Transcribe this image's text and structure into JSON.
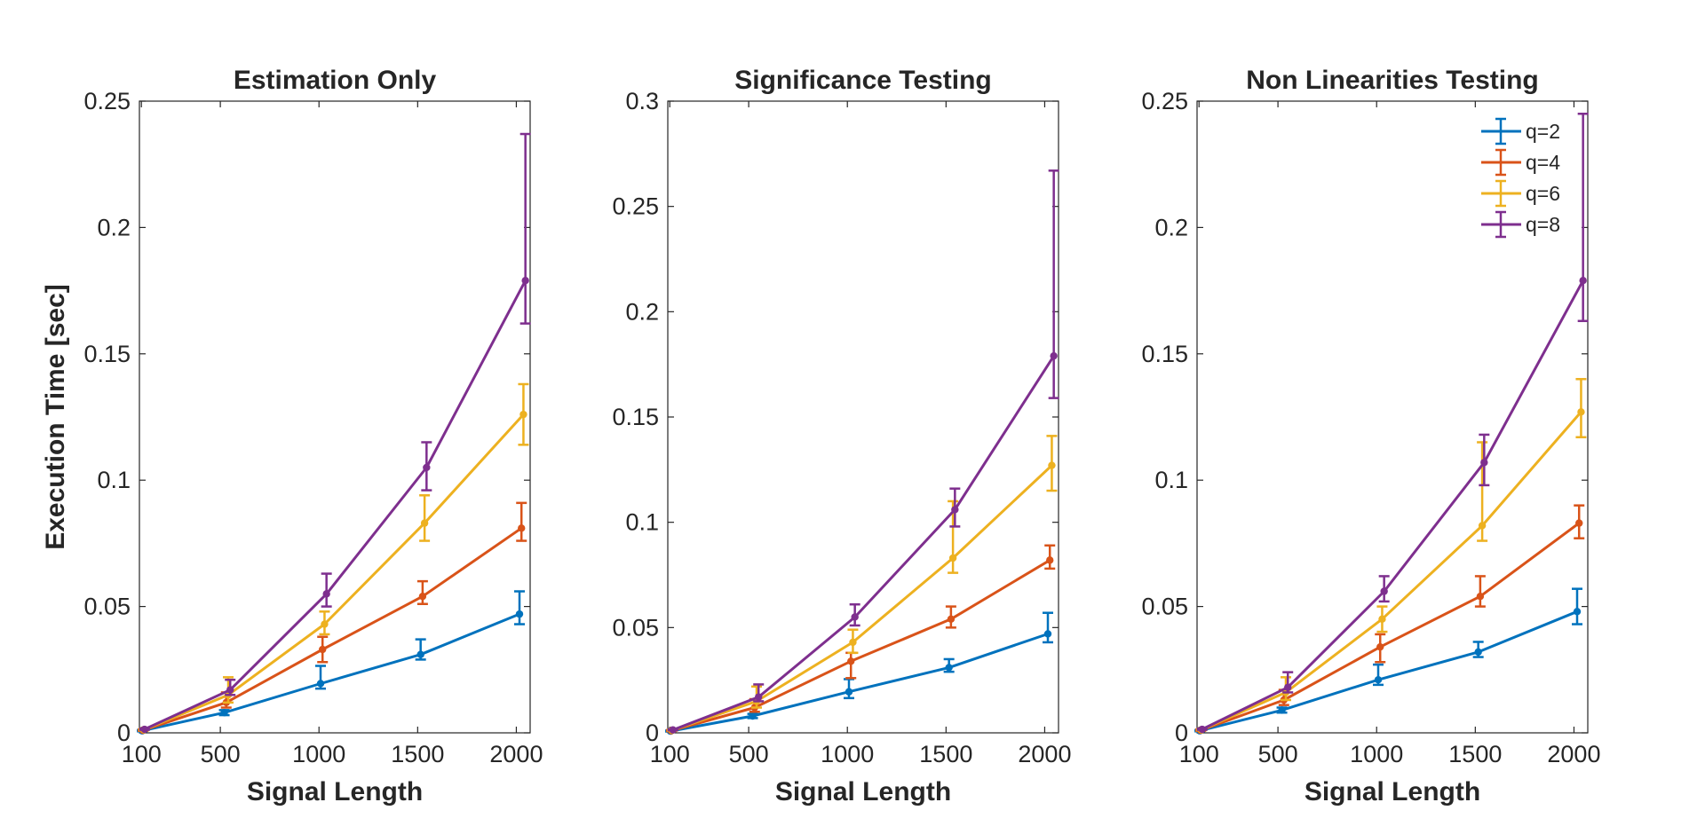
{
  "chart_data": [
    {
      "type": "line",
      "title": "Estimation Only",
      "xlabel": "Signal Length",
      "ylabel": "Execution Time [sec]",
      "xlim": [
        90,
        2070
      ],
      "ylim": [
        0,
        0.25
      ],
      "xticks": [
        100,
        500,
        1000,
        1500,
        2000
      ],
      "xtick_labels": [
        "100",
        "500",
        "1000",
        "1500",
        "2000"
      ],
      "yticks": [
        0,
        0.05,
        0.1,
        0.15,
        0.2,
        0.25
      ],
      "ytick_labels": [
        "0",
        "0.05",
        "0.1",
        "0.15",
        "0.2",
        "0.25"
      ],
      "grid": false,
      "legend": null,
      "series": [
        {
          "name": "q=2",
          "color": "#0072BD",
          "x": [
            104,
            520,
            1008,
            1515,
            2016
          ],
          "y": [
            0.0008,
            0.008,
            0.0195,
            0.031,
            0.047
          ],
          "err_low": [
            0.0002,
            0.001,
            0.002,
            0.002,
            0.004
          ],
          "err_high": [
            0.0003,
            0.001,
            0.007,
            0.006,
            0.009
          ]
        },
        {
          "name": "q=4",
          "color": "#D95319",
          "x": [
            108,
            530,
            1018,
            1525,
            2026
          ],
          "y": [
            0.001,
            0.012,
            0.033,
            0.054,
            0.081
          ],
          "err_low": [
            0.0002,
            0.002,
            0.005,
            0.003,
            0.005
          ],
          "err_high": [
            0.0003,
            0.004,
            0.005,
            0.006,
            0.01
          ]
        },
        {
          "name": "q=6",
          "color": "#EDB120",
          "x": [
            112,
            540,
            1028,
            1535,
            2036
          ],
          "y": [
            0.0012,
            0.015,
            0.043,
            0.083,
            0.126
          ],
          "err_low": [
            0.0002,
            0.003,
            0.004,
            0.007,
            0.012
          ],
          "err_high": [
            0.0003,
            0.007,
            0.005,
            0.011,
            0.012
          ]
        },
        {
          "name": "q=8",
          "color": "#7E2F8E",
          "x": [
            116,
            550,
            1038,
            1545,
            2046
          ],
          "y": [
            0.0014,
            0.017,
            0.055,
            0.105,
            0.179
          ],
          "err_low": [
            0.0002,
            0.002,
            0.005,
            0.009,
            0.017
          ],
          "err_high": [
            0.0003,
            0.004,
            0.008,
            0.01,
            0.058
          ]
        }
      ]
    },
    {
      "type": "line",
      "title": "Significance Testing",
      "xlabel": "Signal Length",
      "ylabel": "",
      "xlim": [
        90,
        2070
      ],
      "ylim": [
        0,
        0.3
      ],
      "xticks": [
        100,
        500,
        1000,
        1500,
        2000
      ],
      "xtick_labels": [
        "100",
        "500",
        "1000",
        "1500",
        "2000"
      ],
      "yticks": [
        0,
        0.05,
        0.1,
        0.15,
        0.2,
        0.25,
        0.3
      ],
      "ytick_labels": [
        "0",
        "0.05",
        "0.1",
        "0.15",
        "0.2",
        "0.25",
        "0.3"
      ],
      "grid": false,
      "legend": null,
      "series": [
        {
          "name": "q=2",
          "color": "#0072BD",
          "x": [
            104,
            520,
            1008,
            1515,
            2016
          ],
          "y": [
            0.0008,
            0.008,
            0.0195,
            0.031,
            0.047
          ],
          "err_low": [
            0.0002,
            0.001,
            0.003,
            0.002,
            0.004
          ],
          "err_high": [
            0.0003,
            0.001,
            0.006,
            0.004,
            0.01
          ]
        },
        {
          "name": "q=4",
          "color": "#D95319",
          "x": [
            108,
            530,
            1018,
            1525,
            2026
          ],
          "y": [
            0.001,
            0.012,
            0.034,
            0.054,
            0.082
          ],
          "err_low": [
            0.0002,
            0.002,
            0.008,
            0.004,
            0.004
          ],
          "err_high": [
            0.0003,
            0.004,
            0.004,
            0.006,
            0.007
          ]
        },
        {
          "name": "q=6",
          "color": "#EDB120",
          "x": [
            112,
            540,
            1028,
            1535,
            2036
          ],
          "y": [
            0.0012,
            0.015,
            0.043,
            0.083,
            0.127
          ],
          "err_low": [
            0.0002,
            0.003,
            0.005,
            0.007,
            0.012
          ],
          "err_high": [
            0.0003,
            0.007,
            0.006,
            0.027,
            0.014
          ]
        },
        {
          "name": "q=8",
          "color": "#7E2F8E",
          "x": [
            116,
            550,
            1038,
            1545,
            2046
          ],
          "y": [
            0.0014,
            0.017,
            0.055,
            0.106,
            0.179
          ],
          "err_low": [
            0.0002,
            0.002,
            0.004,
            0.008,
            0.02
          ],
          "err_high": [
            0.0003,
            0.006,
            0.006,
            0.01,
            0.088
          ]
        }
      ]
    },
    {
      "type": "line",
      "title": "Non Linearities Testing",
      "xlabel": "Signal Length",
      "ylabel": "",
      "xlim": [
        90,
        2070
      ],
      "ylim": [
        0,
        0.25
      ],
      "xticks": [
        100,
        500,
        1000,
        1500,
        2000
      ],
      "xtick_labels": [
        "100",
        "500",
        "1000",
        "1500",
        "2000"
      ],
      "yticks": [
        0,
        0.05,
        0.1,
        0.15,
        0.2,
        0.25
      ],
      "ytick_labels": [
        "0",
        "0.05",
        "0.1",
        "0.15",
        "0.2",
        "0.25"
      ],
      "grid": false,
      "legend": "top-right",
      "series": [
        {
          "name": "q=2",
          "color": "#0072BD",
          "x": [
            104,
            520,
            1008,
            1515,
            2016
          ],
          "y": [
            0.0008,
            0.009,
            0.021,
            0.032,
            0.048
          ],
          "err_low": [
            0.0002,
            0.001,
            0.002,
            0.002,
            0.005
          ],
          "err_high": [
            0.0003,
            0.001,
            0.006,
            0.004,
            0.009
          ]
        },
        {
          "name": "q=4",
          "color": "#D95319",
          "x": [
            108,
            530,
            1018,
            1525,
            2026
          ],
          "y": [
            0.001,
            0.013,
            0.034,
            0.054,
            0.083
          ],
          "err_low": [
            0.0002,
            0.002,
            0.006,
            0.004,
            0.006
          ],
          "err_high": [
            0.0003,
            0.004,
            0.005,
            0.008,
            0.007
          ]
        },
        {
          "name": "q=6",
          "color": "#EDB120",
          "x": [
            112,
            540,
            1028,
            1535,
            2036
          ],
          "y": [
            0.0012,
            0.016,
            0.045,
            0.082,
            0.127
          ],
          "err_low": [
            0.0002,
            0.003,
            0.005,
            0.006,
            0.01
          ],
          "err_high": [
            0.0003,
            0.006,
            0.005,
            0.033,
            0.013
          ]
        },
        {
          "name": "q=8",
          "color": "#7E2F8E",
          "x": [
            116,
            550,
            1038,
            1545,
            2046
          ],
          "y": [
            0.0014,
            0.018,
            0.056,
            0.107,
            0.179
          ],
          "err_low": [
            0.0002,
            0.002,
            0.004,
            0.009,
            0.016
          ],
          "err_high": [
            0.0003,
            0.006,
            0.006,
            0.011,
            0.066
          ]
        }
      ]
    }
  ]
}
